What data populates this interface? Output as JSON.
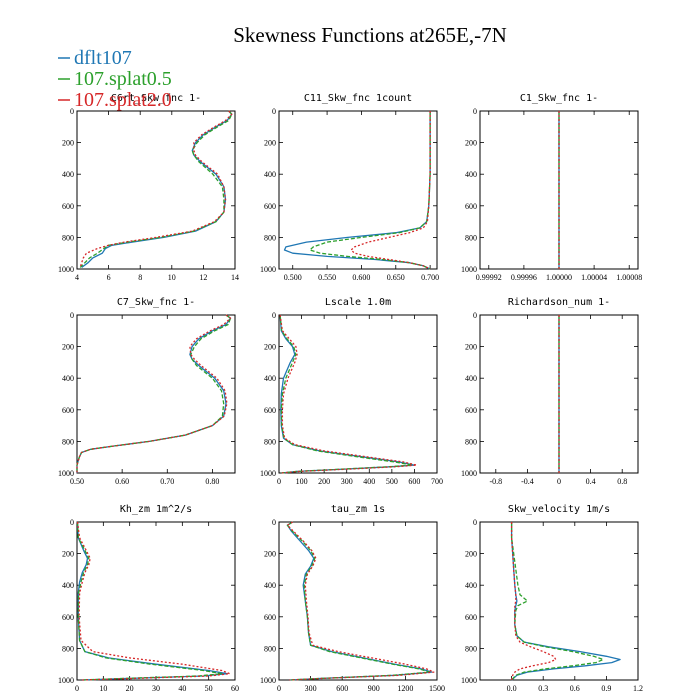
{
  "title": "Skewness Functions at265E,-7N",
  "colors": {
    "dflt107": "#1f77b4",
    "107.splat0.5": "#2ca02c",
    "107.splat2.0": "#d62728"
  },
  "legend": [
    {
      "name": "dflt107",
      "color": "#1f77b4",
      "dash": ""
    },
    {
      "name": "107.splat0.5",
      "color": "#2ca02c",
      "dash": "4,2"
    },
    {
      "name": "107.splat2.0",
      "color": "#d62728",
      "dash": "2,2"
    }
  ],
  "chart_data": [
    {
      "type": "line",
      "title": "C6rt_Skw_fnc 1-",
      "x_label": "",
      "y_label": "",
      "xlim": [
        4,
        14
      ],
      "ylim": [
        1000,
        0
      ],
      "xticks": [
        4,
        6,
        8,
        10,
        12,
        14
      ],
      "xtick_labels": [
        "4",
        "6",
        "8",
        "10",
        "12",
        "14"
      ],
      "yticks": [
        0,
        200,
        400,
        600,
        800,
        1000
      ],
      "y": [
        0,
        20,
        60,
        100,
        150,
        200,
        250,
        280,
        320,
        400,
        480,
        560,
        640,
        700,
        760,
        800,
        830,
        850,
        870,
        900,
        930,
        960,
        990
      ],
      "series": [
        {
          "name": "dflt107",
          "x": [
            13.6,
            13.8,
            13.5,
            12.8,
            12.0,
            11.5,
            11.3,
            11.4,
            11.8,
            12.8,
            13.3,
            13.4,
            13.3,
            12.8,
            11.5,
            9.5,
            7.5,
            6.2,
            5.8,
            5.6,
            5.0,
            4.7,
            4.3
          ]
        },
        {
          "name": "107.splat0.5",
          "x": [
            13.6,
            13.8,
            13.6,
            12.9,
            12.1,
            11.6,
            11.3,
            11.4,
            11.7,
            12.6,
            13.2,
            13.3,
            13.3,
            12.8,
            11.4,
            9.3,
            7.2,
            6.0,
            5.7,
            5.3,
            4.8,
            4.5,
            4.2
          ]
        },
        {
          "name": "107.splat2.0",
          "x": [
            13.6,
            13.8,
            13.4,
            12.7,
            11.9,
            11.4,
            11.4,
            11.5,
            11.9,
            12.9,
            13.3,
            13.4,
            13.3,
            12.7,
            11.3,
            9.0,
            7.0,
            6.0,
            5.3,
            4.6,
            4.4,
            4.3,
            4.2
          ]
        }
      ]
    },
    {
      "type": "line",
      "title": "C11_Skw_fnc 1count",
      "x_label": "",
      "y_label": "",
      "xlim": [
        0.48,
        0.71
      ],
      "ylim": [
        1000,
        0
      ],
      "xticks": [
        0.5,
        0.55,
        0.6,
        0.65,
        0.7
      ],
      "xtick_labels": [
        "0.500",
        "0.550",
        "0.600",
        "0.650",
        "0.700"
      ],
      "yticks": [
        0,
        200,
        400,
        600,
        800,
        1000
      ],
      "y": [
        0,
        200,
        400,
        600,
        700,
        740,
        770,
        800,
        830,
        860,
        880,
        900,
        920,
        940,
        960,
        980,
        1000
      ],
      "series": [
        {
          "name": "dflt107",
          "x": [
            0.7,
            0.7,
            0.7,
            0.698,
            0.695,
            0.685,
            0.65,
            0.58,
            0.52,
            0.49,
            0.488,
            0.5,
            0.55,
            0.62,
            0.67,
            0.69,
            0.7
          ]
        },
        {
          "name": "107.splat0.5",
          "x": [
            0.7,
            0.7,
            0.7,
            0.698,
            0.695,
            0.685,
            0.655,
            0.6,
            0.55,
            0.53,
            0.525,
            0.54,
            0.58,
            0.63,
            0.67,
            0.69,
            0.7
          ]
        },
        {
          "name": "107.splat2.0",
          "x": [
            0.7,
            0.7,
            0.7,
            0.698,
            0.696,
            0.69,
            0.67,
            0.64,
            0.61,
            0.59,
            0.585,
            0.59,
            0.61,
            0.64,
            0.67,
            0.69,
            0.7
          ]
        }
      ]
    },
    {
      "type": "line",
      "title": "C1_Skw_fnc 1-",
      "x_label": "",
      "y_label": "",
      "xlim": [
        0.99991,
        1.00009
      ],
      "ylim": [
        1000,
        0
      ],
      "xticks": [
        0.99992,
        0.99996,
        1.0,
        1.00004,
        1.00008
      ],
      "xtick_labels": [
        "0.99992",
        "0.99996",
        "1.00000",
        "1.00004",
        "1.00008"
      ],
      "yticks": [
        0,
        200,
        400,
        600,
        800,
        1000
      ],
      "y": [
        0,
        1000
      ],
      "series": [
        {
          "name": "dflt107",
          "x": [
            1.0,
            1.0
          ]
        },
        {
          "name": "107.splat0.5",
          "x": [
            1.0,
            1.0
          ]
        },
        {
          "name": "107.splat2.0",
          "x": [
            1.0,
            1.0
          ]
        }
      ]
    },
    {
      "type": "line",
      "title": "C7_Skw_fnc 1-",
      "x_label": "",
      "y_label": "",
      "xlim": [
        0.5,
        0.85
      ],
      "ylim": [
        1000,
        0
      ],
      "xticks": [
        0.5,
        0.6,
        0.7,
        0.8
      ],
      "xtick_labels": [
        "0.50",
        "0.60",
        "0.70",
        "0.80"
      ],
      "yticks": [
        0,
        200,
        400,
        600,
        800,
        1000
      ],
      "y": [
        0,
        20,
        60,
        100,
        150,
        200,
        250,
        280,
        320,
        400,
        480,
        560,
        640,
        700,
        760,
        800,
        830,
        850,
        870,
        900,
        950,
        1000
      ],
      "series": [
        {
          "name": "dflt107",
          "x": [
            0.83,
            0.84,
            0.83,
            0.8,
            0.77,
            0.755,
            0.75,
            0.755,
            0.77,
            0.805,
            0.825,
            0.83,
            0.825,
            0.8,
            0.74,
            0.66,
            0.58,
            0.53,
            0.51,
            0.505,
            0.5,
            0.5
          ]
        },
        {
          "name": "107.splat0.5",
          "x": [
            0.83,
            0.84,
            0.835,
            0.805,
            0.775,
            0.76,
            0.752,
            0.755,
            0.765,
            0.8,
            0.82,
            0.825,
            0.822,
            0.8,
            0.74,
            0.66,
            0.58,
            0.53,
            0.51,
            0.505,
            0.5,
            0.5
          ]
        },
        {
          "name": "107.splat2.0",
          "x": [
            0.83,
            0.84,
            0.825,
            0.795,
            0.765,
            0.75,
            0.752,
            0.76,
            0.775,
            0.81,
            0.828,
            0.832,
            0.826,
            0.8,
            0.74,
            0.66,
            0.58,
            0.53,
            0.51,
            0.505,
            0.5,
            0.5
          ]
        }
      ]
    },
    {
      "type": "line",
      "title": "Lscale 1.0m",
      "x_label": "",
      "y_label": "",
      "xlim": [
        0,
        700
      ],
      "ylim": [
        1000,
        0
      ],
      "xticks": [
        0,
        100,
        200,
        300,
        400,
        500,
        600,
        700
      ],
      "xtick_labels": [
        "0",
        "100",
        "200",
        "300",
        "400",
        "500",
        "600",
        "700"
      ],
      "yticks": [
        0,
        200,
        400,
        600,
        800,
        1000
      ],
      "y": [
        0,
        100,
        150,
        200,
        250,
        300,
        350,
        400,
        500,
        600,
        700,
        780,
        820,
        860,
        900,
        930,
        950,
        960,
        975,
        990,
        1000
      ],
      "series": [
        {
          "name": "dflt107",
          "x": [
            5,
            10,
            30,
            60,
            70,
            50,
            35,
            20,
            10,
            8,
            10,
            20,
            60,
            180,
            380,
            530,
            600,
            500,
            300,
            80,
            10
          ]
        },
        {
          "name": "107.splat0.5",
          "x": [
            5,
            12,
            35,
            65,
            75,
            60,
            45,
            30,
            15,
            10,
            12,
            22,
            60,
            170,
            360,
            510,
            590,
            490,
            290,
            80,
            10
          ]
        },
        {
          "name": "107.splat2.0",
          "x": [
            5,
            15,
            45,
            75,
            80,
            70,
            55,
            40,
            20,
            15,
            15,
            25,
            70,
            200,
            400,
            550,
            610,
            520,
            320,
            90,
            10
          ]
        }
      ]
    },
    {
      "type": "line",
      "title": "Richardson_num 1-",
      "x_label": "",
      "y_label": "",
      "xlim": [
        -1,
        1
      ],
      "ylim": [
        1000,
        0
      ],
      "xticks": [
        -0.8,
        -0.4,
        0,
        0.4,
        0.8
      ],
      "xtick_labels": [
        "-0.8",
        "-0.4",
        "0",
        "0.4",
        "0.8"
      ],
      "yticks": [
        0,
        200,
        400,
        600,
        800,
        1000
      ],
      "y": [
        0,
        1000
      ],
      "series": [
        {
          "name": "dflt107",
          "x": [
            0,
            0
          ]
        },
        {
          "name": "107.splat0.5",
          "x": [
            0,
            0
          ]
        },
        {
          "name": "107.splat2.0",
          "x": [
            0,
            0
          ]
        }
      ]
    },
    {
      "type": "line",
      "title": "Kh_zm 1m^2/s",
      "x_label": "",
      "y_label": "",
      "xlim": [
        0,
        60
      ],
      "ylim": [
        1000,
        0
      ],
      "xticks": [
        0,
        10,
        20,
        30,
        40,
        50,
        60
      ],
      "xtick_labels": [
        "0",
        "10",
        "20",
        "30",
        "40",
        "50",
        "60"
      ],
      "yticks": [
        0,
        200,
        400,
        600,
        800,
        1000
      ],
      "y": [
        0,
        100,
        180,
        230,
        270,
        320,
        380,
        450,
        600,
        750,
        820,
        860,
        900,
        940,
        960,
        975,
        990,
        1000
      ],
      "series": [
        {
          "name": "dflt107",
          "x": [
            0.2,
            0.5,
            2.5,
            4.0,
            3.5,
            2.0,
            1.0,
            0.5,
            0.5,
            1.0,
            3.0,
            12,
            30,
            50,
            57,
            48,
            20,
            2
          ]
        },
        {
          "name": "107.splat0.5",
          "x": [
            0.2,
            0.5,
            3.0,
            4.5,
            4.0,
            2.5,
            1.5,
            0.6,
            0.5,
            1.0,
            3.0,
            11,
            28,
            48,
            55,
            46,
            18,
            2
          ]
        },
        {
          "name": "107.splat2.0",
          "x": [
            0.2,
            1.0,
            3.5,
            5.0,
            4.5,
            3.0,
            2.0,
            1.0,
            0.8,
            1.5,
            6.0,
            20,
            40,
            55,
            58,
            50,
            22,
            2
          ]
        }
      ]
    },
    {
      "type": "line",
      "title": "tau_zm 1s",
      "x_label": "",
      "y_label": "",
      "xlim": [
        0,
        1500
      ],
      "ylim": [
        1000,
        0
      ],
      "xticks": [
        0,
        300,
        600,
        900,
        1200,
        1500
      ],
      "xtick_labels": [
        "0",
        "300",
        "600",
        "900",
        "1200",
        "1500"
      ],
      "yticks": [
        0,
        200,
        400,
        600,
        800,
        1000
      ],
      "y": [
        0,
        20,
        60,
        120,
        180,
        230,
        280,
        330,
        400,
        500,
        600,
        700,
        780,
        820,
        860,
        900,
        930,
        950,
        970,
        990,
        1000
      ],
      "series": [
        {
          "name": "dflt107",
          "x": [
            130,
            80,
            120,
            200,
            280,
            330,
            300,
            250,
            230,
            250,
            270,
            280,
            300,
            500,
            800,
            1100,
            1350,
            1450,
            1100,
            400,
            100
          ]
        },
        {
          "name": "107.splat0.5",
          "x": [
            130,
            80,
            130,
            220,
            300,
            340,
            310,
            260,
            240,
            250,
            270,
            280,
            300,
            480,
            780,
            1080,
            1330,
            1430,
            1080,
            400,
            100
          ]
        },
        {
          "name": "107.splat2.0",
          "x": [
            130,
            80,
            140,
            230,
            310,
            350,
            320,
            270,
            250,
            260,
            275,
            285,
            320,
            560,
            880,
            1200,
            1400,
            1470,
            1150,
            420,
            100
          ]
        }
      ]
    },
    {
      "type": "line",
      "title": "Skw_velocity 1m/s",
      "x_label": "",
      "y_label": "",
      "xlim": [
        -0.3,
        1.2
      ],
      "ylim": [
        1000,
        0
      ],
      "xticks": [
        0,
        0.3,
        0.6,
        0.9,
        1.2
      ],
      "xtick_labels": [
        "0.0",
        "0.3",
        "0.6",
        "0.9",
        "1.2"
      ],
      "yticks": [
        0,
        200,
        400,
        600,
        800,
        1000
      ],
      "y": [
        0,
        100,
        200,
        300,
        400,
        460,
        500,
        530,
        560,
        650,
        720,
        760,
        790,
        820,
        850,
        870,
        890,
        910,
        930,
        950,
        970,
        1000
      ],
      "series": [
        {
          "name": "dflt107",
          "x": [
            0.0,
            0.0,
            0.01,
            0.02,
            0.03,
            0.04,
            0.05,
            0.04,
            0.03,
            0.03,
            0.05,
            0.12,
            0.35,
            0.65,
            0.9,
            1.03,
            0.95,
            0.7,
            0.4,
            0.15,
            0.05,
            0.0
          ]
        },
        {
          "name": "107.splat0.5",
          "x": [
            0.0,
            0.0,
            0.02,
            0.04,
            0.06,
            0.08,
            0.15,
            0.06,
            0.04,
            0.03,
            0.05,
            0.12,
            0.32,
            0.58,
            0.78,
            0.87,
            0.8,
            0.58,
            0.32,
            0.12,
            0.04,
            0.0
          ]
        },
        {
          "name": "107.splat2.0",
          "x": [
            0.0,
            0.0,
            0.01,
            0.02,
            0.03,
            0.04,
            0.04,
            0.03,
            0.03,
            0.03,
            0.04,
            0.08,
            0.18,
            0.3,
            0.4,
            0.42,
            0.35,
            0.2,
            0.08,
            0.03,
            0.01,
            0.0
          ]
        }
      ]
    }
  ]
}
